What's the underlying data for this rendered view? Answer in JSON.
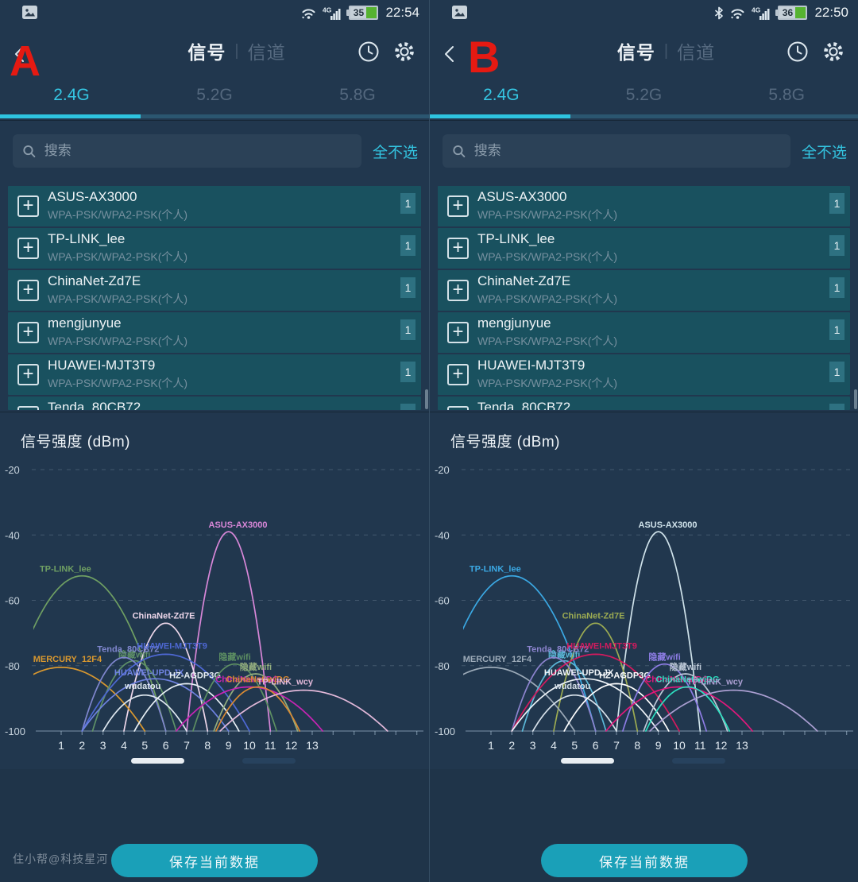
{
  "annotation": {
    "a_label": "A",
    "b_label": "B",
    "color": "#e51a12"
  },
  "header": {
    "title_signal": "信号",
    "divider": "|",
    "title_channel": "信道"
  },
  "tabs": {
    "items": [
      "2.4G",
      "5.2G",
      "5.8G"
    ],
    "active_index": 0
  },
  "search": {
    "placeholder": "搜索",
    "deselect_all": "全不选"
  },
  "network_list": {
    "add_icon": "+",
    "security": "WPA-PSK/WPA2-PSK(个人)",
    "rows": [
      {
        "ssid": "ASUS-AX3000",
        "count": "1"
      },
      {
        "ssid": "TP-LINK_lee",
        "count": "1"
      },
      {
        "ssid": "ChinaNet-Zd7E",
        "count": "1"
      },
      {
        "ssid": "mengjunyue",
        "count": "1"
      },
      {
        "ssid": "HUAWEI-MJT3T9",
        "count": "1"
      }
    ],
    "partial_row": {
      "ssid": "Tenda_80CB72",
      "count": "1"
    }
  },
  "chart_data": {
    "type": "line",
    "title": "信号强度 (dBm)",
    "ylabel": "信号强度 (dBm)",
    "ylim": [
      -100,
      -20
    ],
    "y_ticks": [
      -20,
      -40,
      -60,
      -80,
      -100
    ],
    "x_ticks": [
      1,
      2,
      3,
      4,
      5,
      6,
      7,
      8,
      9,
      10,
      11,
      12,
      13
    ],
    "grid": "dashed horizontal",
    "legend_position": "labels at curve peaks",
    "series": [
      {
        "name": "ASUS-AX3000",
        "center_channel": 9,
        "peak_dbm": -39,
        "half_width_channels": 2,
        "color_a": "#d887d8",
        "color_b": "#cfe2ea",
        "label_dx": 0.45,
        "label_dy": -5
      },
      {
        "name": "TP-LINK_lee",
        "center_channel": 2,
        "peak_dbm": -52.5,
        "half_width_channels": 4,
        "color_a": "#6f9f63",
        "color_b": "#3ba8e3",
        "label_dx": -0.8,
        "label_dy": -5
      },
      {
        "name": "ChinaNet-Zd7E",
        "center_channel": 6,
        "peak_dbm": -67,
        "half_width_channels": 2,
        "color_a": "#eed7ea",
        "color_b": "#9cab52",
        "label_dx": -0.1,
        "label_dy": -6
      },
      {
        "name": "MERCURY_12F4",
        "center_channel": 1,
        "peak_dbm": -80.5,
        "half_width_channels": 4,
        "color_a": "#d9982f",
        "color_b": "#9dabb9",
        "label_dx": 0.3,
        "label_dy": -7
      },
      {
        "name": "隐藏wifi",
        "center_channel": 4.5,
        "peak_dbm": -78.5,
        "half_width_channels": 2,
        "color_a": "#5f9168",
        "color_b": "#5bb8d8",
        "label_dx": 0,
        "label_dy": -4
      },
      {
        "name": "Tenda_80CB72",
        "center_channel": 4,
        "peak_dbm": -77.5,
        "half_width_channels": 2,
        "color_a": "#8087cf",
        "color_b": "#8d84cf",
        "label_dx": 0.2,
        "label_dy": -7
      },
      {
        "name": "HUAWEI-MJT3T9",
        "center_channel": 6,
        "peak_dbm": -76.5,
        "half_width_channels": 4,
        "color_a": "#4e68d4",
        "color_b": "#d41a5e",
        "label_dx": 0.3,
        "label_dy": -7
      },
      {
        "name": "HUAWEI-UPD.JX",
        "center_channel": 5.5,
        "peak_dbm": -84,
        "half_width_channels": 3.5,
        "color_a": "#6e82e0",
        "color_b": "#eef3f8",
        "label_dx": -0.3,
        "label_dy": -4
      },
      {
        "name": "wudatou",
        "center_channel": 5,
        "peak_dbm": -89,
        "half_width_channels": 2,
        "color_a": "#dfe8f0",
        "color_b": "#d7e1ea",
        "label_dx": -0.1,
        "label_dy": -8
      },
      {
        "name": "HZ-AGDP3G",
        "center_channel": 7,
        "peak_dbm": -85.5,
        "half_width_channels": 2.5,
        "color_a": "#e8f0f6",
        "color_b": "#ffffff",
        "label_dx": 0.4,
        "label_dy": -7
      },
      {
        "name": "隐藏wifi",
        "center_channel": 9.3,
        "peak_dbm": -79.5,
        "half_width_channels": 2,
        "color_a": "#5d8f62",
        "color_b": "#8d7ce4",
        "label_dx": 0,
        "label_dy": -5
      },
      {
        "name": "隐藏wifi",
        "center_channel": 10.3,
        "peak_dbm": -82.5,
        "half_width_channels": 2,
        "color_a": "#93ad7e",
        "color_b": "#bcc8d6",
        "label_dx": 0,
        "label_dy": -5
      },
      {
        "name": "ChinaNet-wjDG",
        "center_channel": 10,
        "peak_dbm": -86.5,
        "half_width_channels": 3.5,
        "color_a": "#c724b4",
        "color_b": "#e0187c",
        "label_dx": -0.1,
        "label_dy": -6
      },
      {
        "name": "ChinaNet-wjDG",
        "center_channel": 10.4,
        "peak_dbm": -86.5,
        "half_width_channels": 2,
        "color_a": "#d98a33",
        "color_b": "#2ddfc0",
        "label_dx": 0,
        "label_dy": -6
      },
      {
        "name": "TP-LINK_wcy",
        "center_channel": 12.6,
        "peak_dbm": -87.5,
        "half_width_channels": 4,
        "color_a": "#e3b9da",
        "color_b": "#ab9fd2",
        "label_dx": -0.9,
        "label_dy": -7
      }
    ]
  },
  "footer": {
    "watermark": "住小帮@科技星河",
    "save_button": "保存当前数据"
  },
  "panels": {
    "a": {
      "status": {
        "time": "22:54",
        "battery_percent": "35",
        "has_bluetooth": false
      }
    },
    "b": {
      "status": {
        "time": "22:50",
        "battery_percent": "36",
        "has_bluetooth": true
      }
    }
  },
  "colors": {
    "background": "#21374e",
    "row_background": "#19515f",
    "accent_cyan": "#35c6e3",
    "tab_underline": "#2ec4e0",
    "button_teal": "#1aa0b8",
    "badge_background": "#2e7181",
    "battery_green": "#56b330",
    "annotation_red": "#e51a12"
  }
}
